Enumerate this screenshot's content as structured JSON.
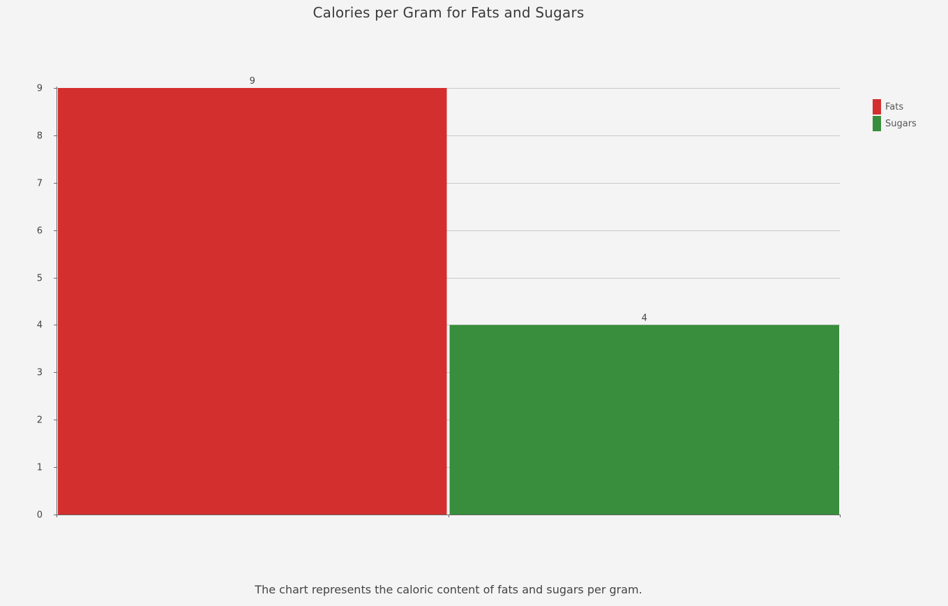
{
  "chart_data": {
    "type": "bar",
    "title": "Calories per Gram for Fats and Sugars",
    "caption": "The chart represents the caloric content of fats and sugars per gram.",
    "xlabel": "",
    "ylabel": "",
    "ylim": [
      0,
      9
    ],
    "yticks": [
      0,
      1,
      2,
      3,
      4,
      5,
      6,
      7,
      8,
      9
    ],
    "grid": true,
    "legend_position": "top-right",
    "series": [
      {
        "name": "Fats",
        "value": 9,
        "color": "#d32f2f"
      },
      {
        "name": "Sugars",
        "value": 4,
        "color": "#388e3c"
      }
    ]
  }
}
